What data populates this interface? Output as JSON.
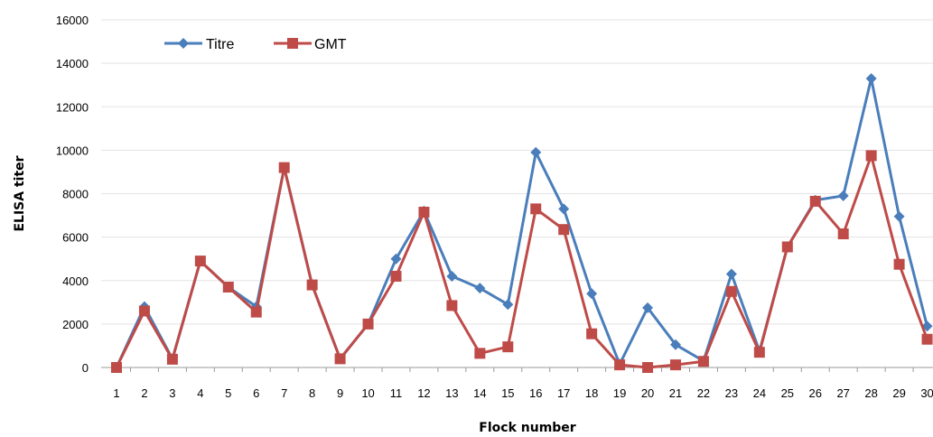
{
  "chart_data": {
    "type": "line",
    "xlabel": "Flock number",
    "ylabel": "ELISA titer",
    "categories": [
      "1",
      "2",
      "3",
      "4",
      "5",
      "6",
      "7",
      "8",
      "9",
      "10",
      "11",
      "12",
      "13",
      "14",
      "15",
      "16",
      "17",
      "18",
      "19",
      "20",
      "21",
      "22",
      "23",
      "24",
      "25",
      "26",
      "27",
      "28",
      "29",
      "30"
    ],
    "yticks": [
      "0",
      "2000",
      "4000",
      "6000",
      "8000",
      "10000",
      "12000",
      "14000",
      "16000"
    ],
    "ylim": [
      0,
      16000
    ],
    "grid": true,
    "legend_position": "top-left",
    "series": [
      {
        "name": "Titre",
        "marker": "diamond",
        "color": "#4a7ebb",
        "values": [
          0,
          2800,
          400,
          4900,
          3700,
          2800,
          9200,
          3800,
          400,
          2000,
          5000,
          7200,
          4200,
          3650,
          2900,
          9900,
          7300,
          3400,
          150,
          2750,
          1050,
          300,
          4300,
          750,
          5550,
          7700,
          7900,
          13300,
          6950,
          1900
        ]
      },
      {
        "name": "GMT",
        "marker": "square",
        "color": "#be4b48",
        "values": [
          0,
          2600,
          380,
          4900,
          3700,
          2550,
          9200,
          3800,
          400,
          2000,
          4200,
          7150,
          2850,
          650,
          950,
          7300,
          6350,
          1550,
          120,
          0,
          120,
          280,
          3500,
          700,
          5550,
          7650,
          6150,
          9750,
          4750,
          1300
        ]
      }
    ]
  }
}
